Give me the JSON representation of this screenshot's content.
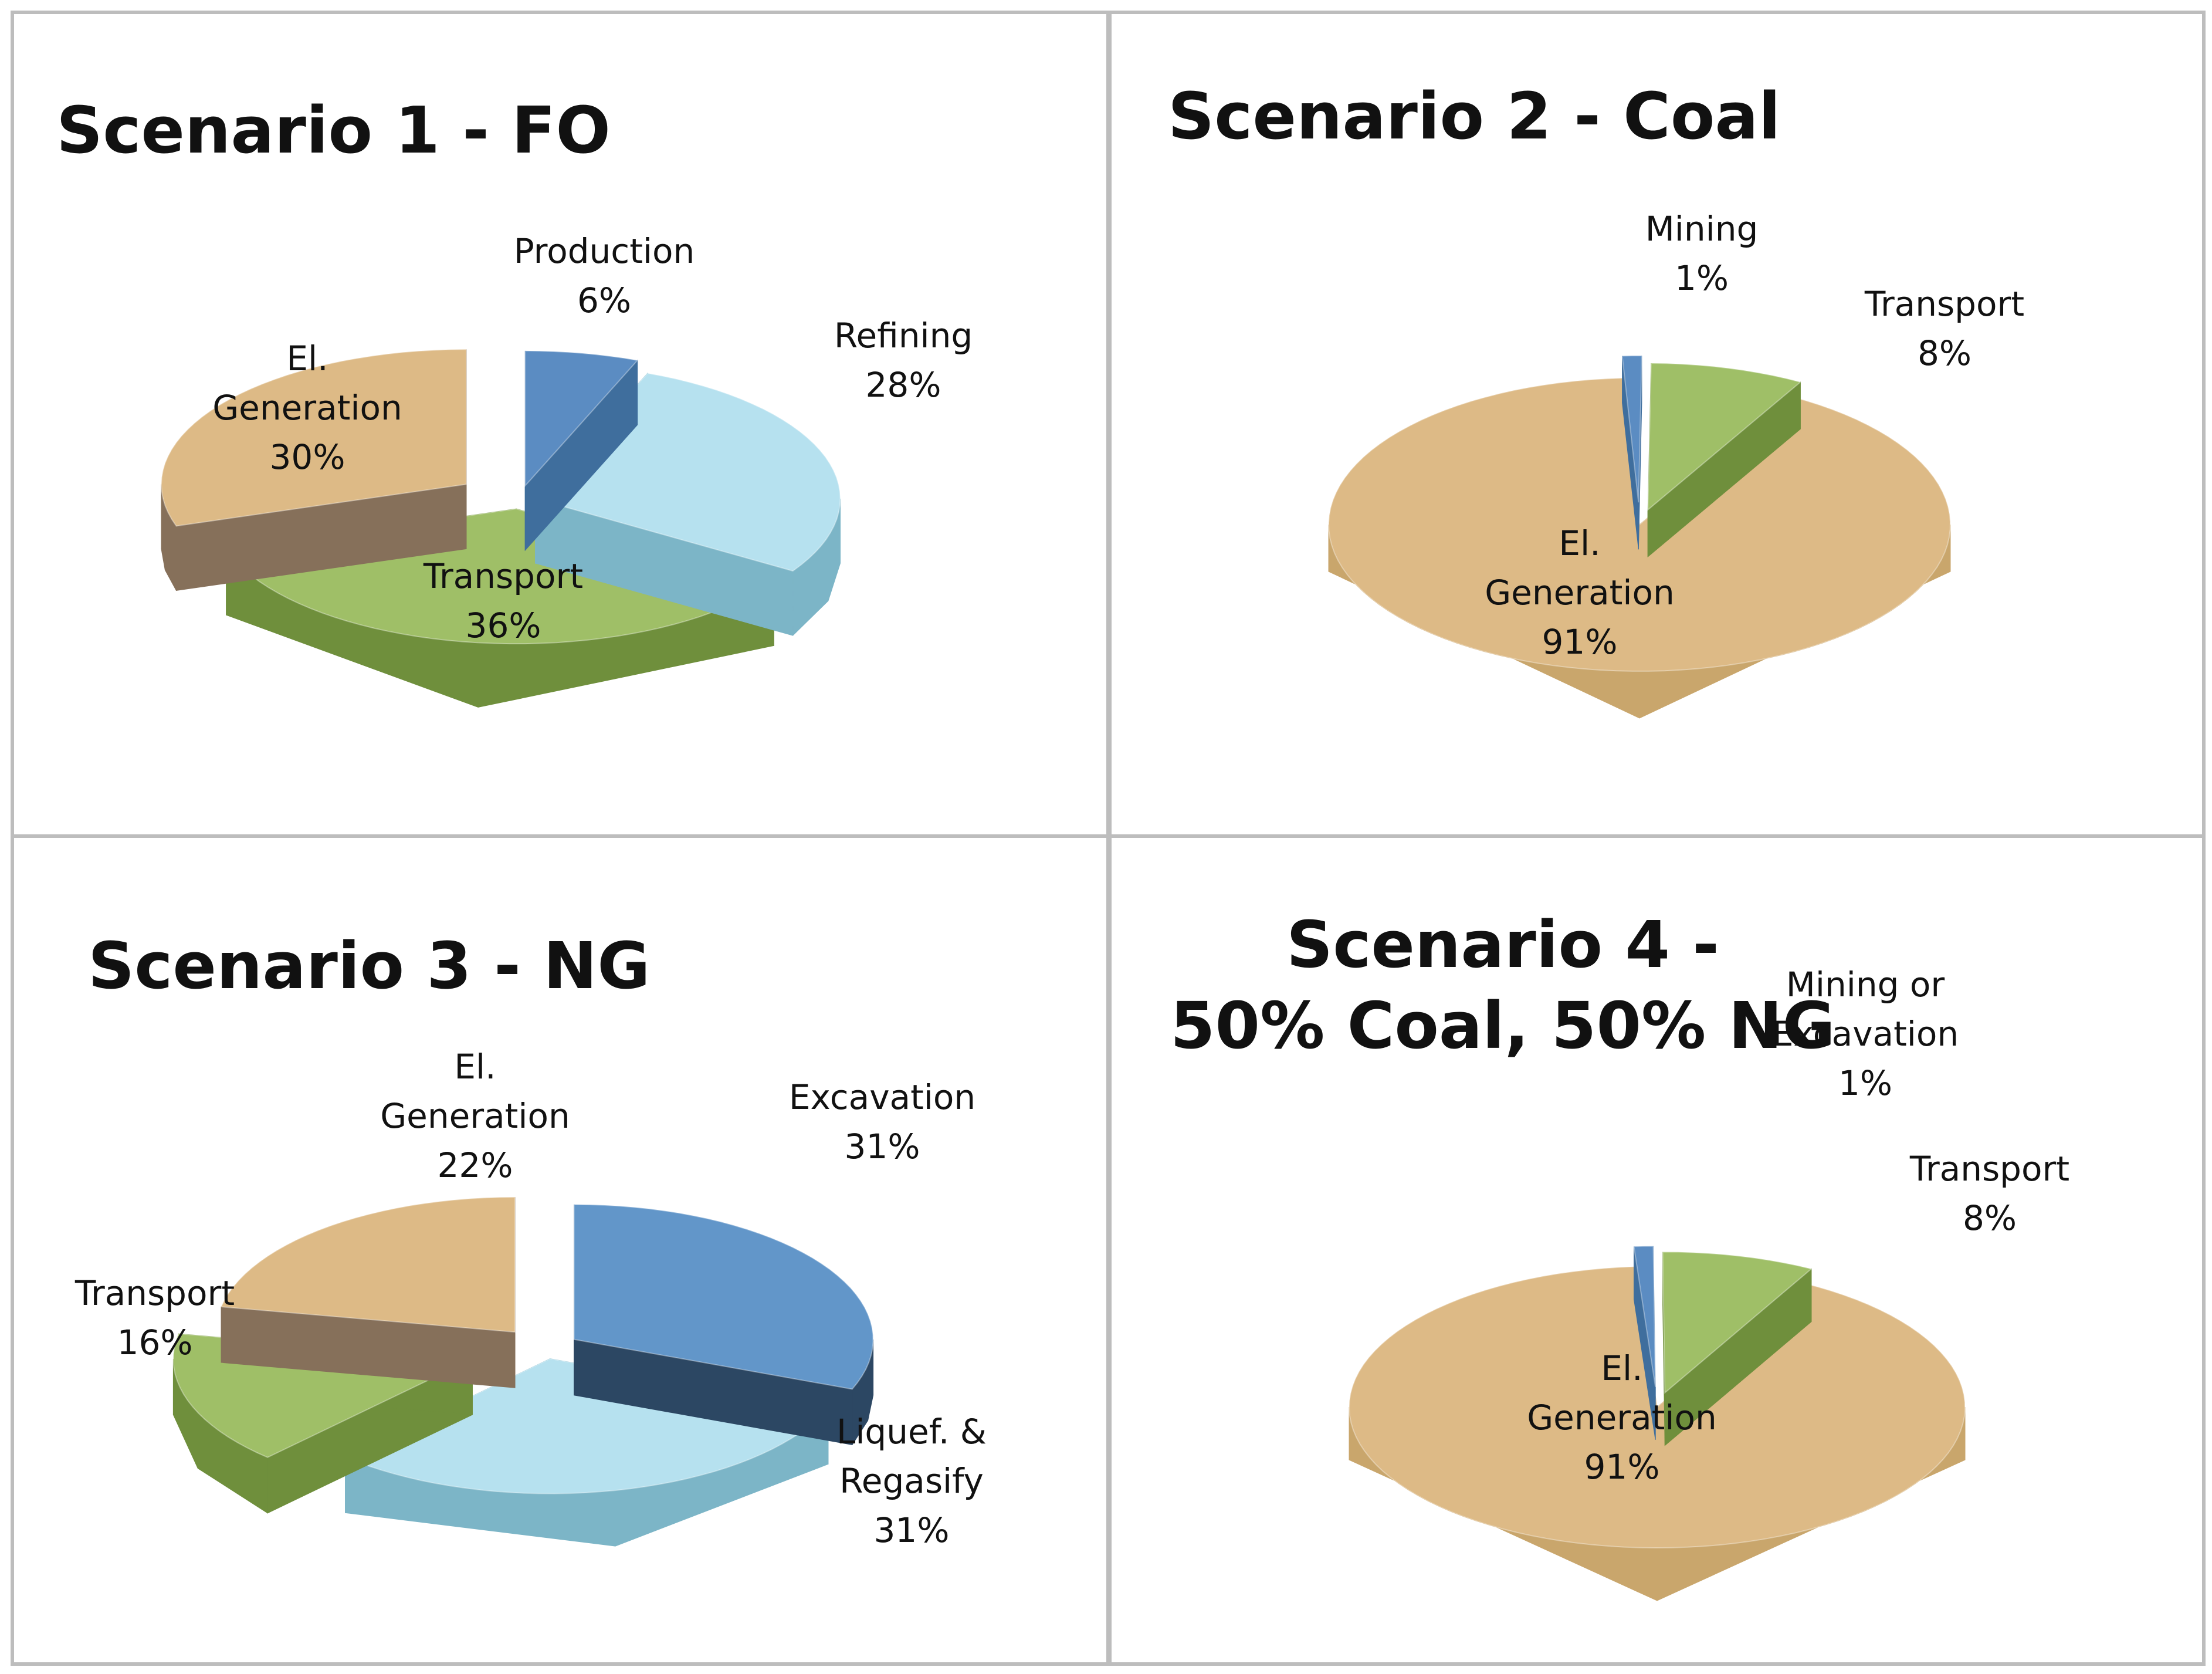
{
  "colors": {
    "production_blue": "#5b8cc2",
    "production_blue_side": "#3f6e9d",
    "excavation_blue": "#6296c9",
    "excavation_blue_side": "#2c4763",
    "water_top": "#b6e1ef",
    "water_side": "#7cb5c7",
    "green_top": "#9fbf67",
    "green_side": "#6f8f3c",
    "wood_top": "#ddba86",
    "wood_side": "#c9a66c",
    "wood_dark_side": "#86705a",
    "grid": "#bdbdbd"
  },
  "chart_data": [
    {
      "type": "pie",
      "title": "Scenario 1 - FO",
      "slices": [
        {
          "name_lines": [
            "Production"
          ],
          "pct_label": "6%",
          "value": 6,
          "texture": "blue"
        },
        {
          "name_lines": [
            "Refining"
          ],
          "pct_label": "28%",
          "value": 28,
          "texture": "water"
        },
        {
          "name_lines": [
            "Transport"
          ],
          "pct_label": "36%",
          "value": 36,
          "texture": "green"
        },
        {
          "name_lines": [
            "El.",
            "Generation"
          ],
          "pct_label": "30%",
          "value": 30,
          "texture": "wood_dark"
        }
      ]
    },
    {
      "type": "pie",
      "title": "Scenario 2 - Coal",
      "slices": [
        {
          "name_lines": [
            "Mining"
          ],
          "pct_label": "1%",
          "value": 1,
          "texture": "blue"
        },
        {
          "name_lines": [
            "Transport"
          ],
          "pct_label": "8%",
          "value": 8,
          "texture": "green"
        },
        {
          "name_lines": [
            "El.",
            "Generation"
          ],
          "pct_label": "91%",
          "value": 91,
          "texture": "wood"
        }
      ]
    },
    {
      "type": "pie",
      "title": "Scenario 3 - NG",
      "slices": [
        {
          "name_lines": [
            "Excavation"
          ],
          "pct_label": "31%",
          "value": 31,
          "texture": "blue_dark"
        },
        {
          "name_lines": [
            "Liquef. &",
            "Regasify"
          ],
          "pct_label": "31%",
          "value": 31,
          "texture": "water"
        },
        {
          "name_lines": [
            "Transport"
          ],
          "pct_label": "16%",
          "value": 16,
          "texture": "green"
        },
        {
          "name_lines": [
            "El.",
            "Generation"
          ],
          "pct_label": "22%",
          "value": 22,
          "texture": "wood_dark"
        }
      ]
    },
    {
      "type": "pie",
      "title": "Scenario 4 - 50% Coal, 50% NG",
      "title_lines": [
        "Scenario 4 -",
        "50% Coal, 50% NG"
      ],
      "slices": [
        {
          "name_lines": [
            "Mining or",
            "Excavation"
          ],
          "pct_label": "1%",
          "value": 1,
          "texture": "blue"
        },
        {
          "name_lines": [
            "Transport"
          ],
          "pct_label": "8%",
          "value": 8,
          "texture": "green"
        },
        {
          "name_lines": [
            "El.",
            "Generation"
          ],
          "pct_label": "91%",
          "value": 91,
          "texture": "wood"
        }
      ]
    }
  ]
}
